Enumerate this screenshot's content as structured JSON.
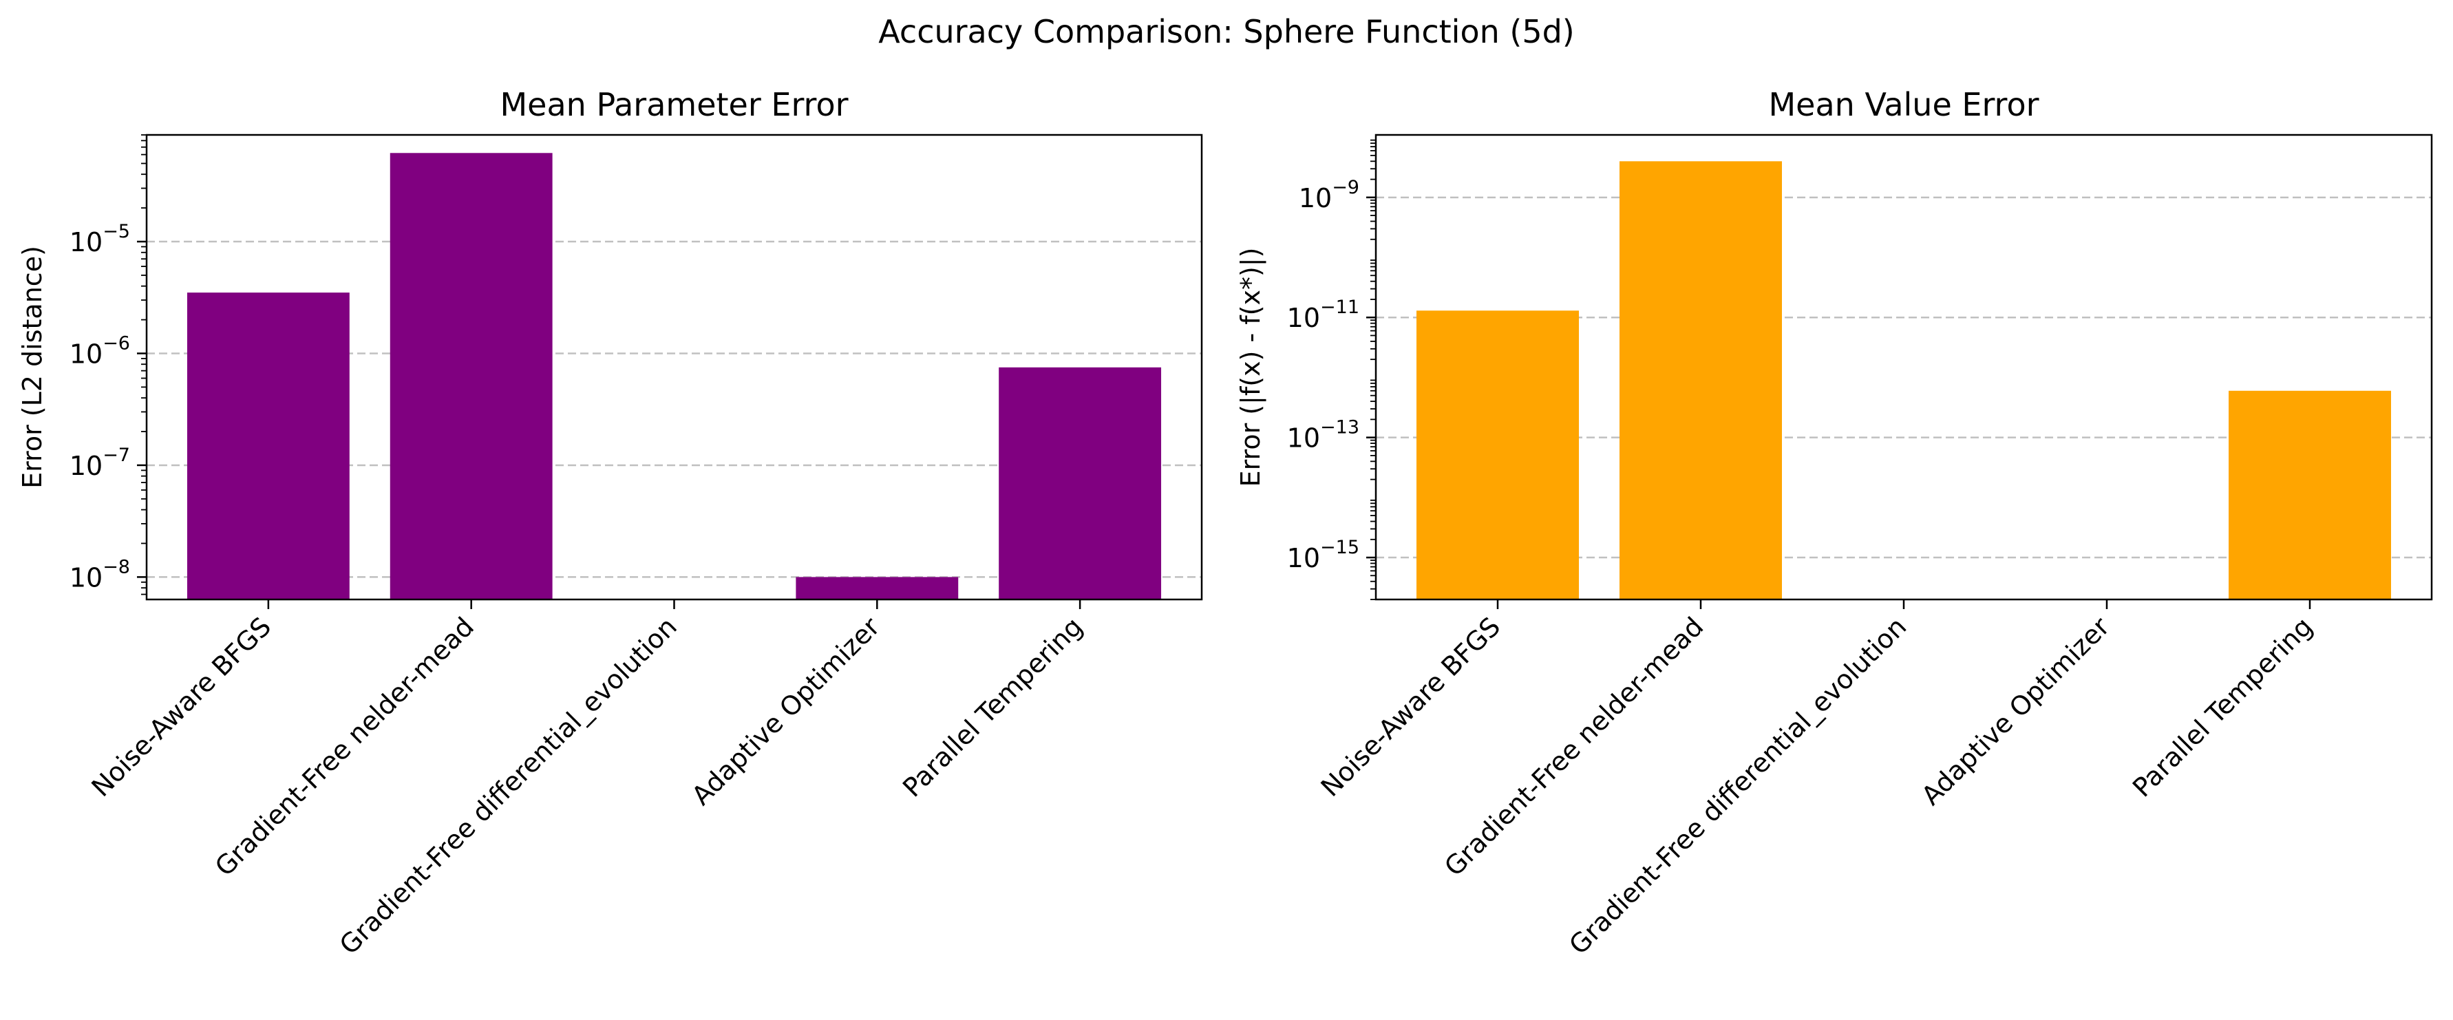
{
  "figure": {
    "title": "Accuracy Comparison: Sphere Function (5d)"
  },
  "colors": {
    "left_bar": "#800080",
    "right_bar": "#FFA500",
    "grid": "#c0c0c0"
  },
  "chart_data": [
    {
      "type": "bar",
      "title": "Mean Parameter Error",
      "xlabel": "",
      "ylabel": "Error (L2 distance)",
      "yscale": "log",
      "ylim": [
        6.3e-09,
        9e-05
      ],
      "yticks": [
        1e-08,
        1e-07,
        1e-06,
        1e-05
      ],
      "ytick_labels": [
        {
          "base": "10",
          "exp": "−8"
        },
        {
          "base": "10",
          "exp": "−7"
        },
        {
          "base": "10",
          "exp": "−6"
        },
        {
          "base": "10",
          "exp": "−5"
        }
      ],
      "grid": "y dashed",
      "categories": [
        "Noise-Aware BFGS",
        "Gradient-Free nelder-mead",
        "Gradient-Free differential_evolution",
        "Adaptive Optimizer",
        "Parallel Tempering"
      ],
      "values": [
        3.5e-06,
        6.2e-05,
        0,
        1e-08,
        7.5e-07
      ]
    },
    {
      "type": "bar",
      "title": "Mean Value Error",
      "xlabel": "",
      "ylabel": "Error (|f(x) - f(x*)|)",
      "yscale": "log",
      "ylim": [
        2e-16,
        1.1e-08
      ],
      "yticks": [
        1e-15,
        1e-13,
        1e-11,
        1e-09
      ],
      "ytick_labels": [
        {
          "base": "10",
          "exp": "−15"
        },
        {
          "base": "10",
          "exp": "−13"
        },
        {
          "base": "10",
          "exp": "−11"
        },
        {
          "base": "10",
          "exp": "−9"
        }
      ],
      "grid": "y dashed",
      "categories": [
        "Noise-Aware BFGS",
        "Gradient-Free nelder-mead",
        "Gradient-Free differential_evolution",
        "Adaptive Optimizer",
        "Parallel Tempering"
      ],
      "values": [
        1.3e-11,
        4e-09,
        0,
        1e-16,
        6e-13
      ]
    }
  ]
}
